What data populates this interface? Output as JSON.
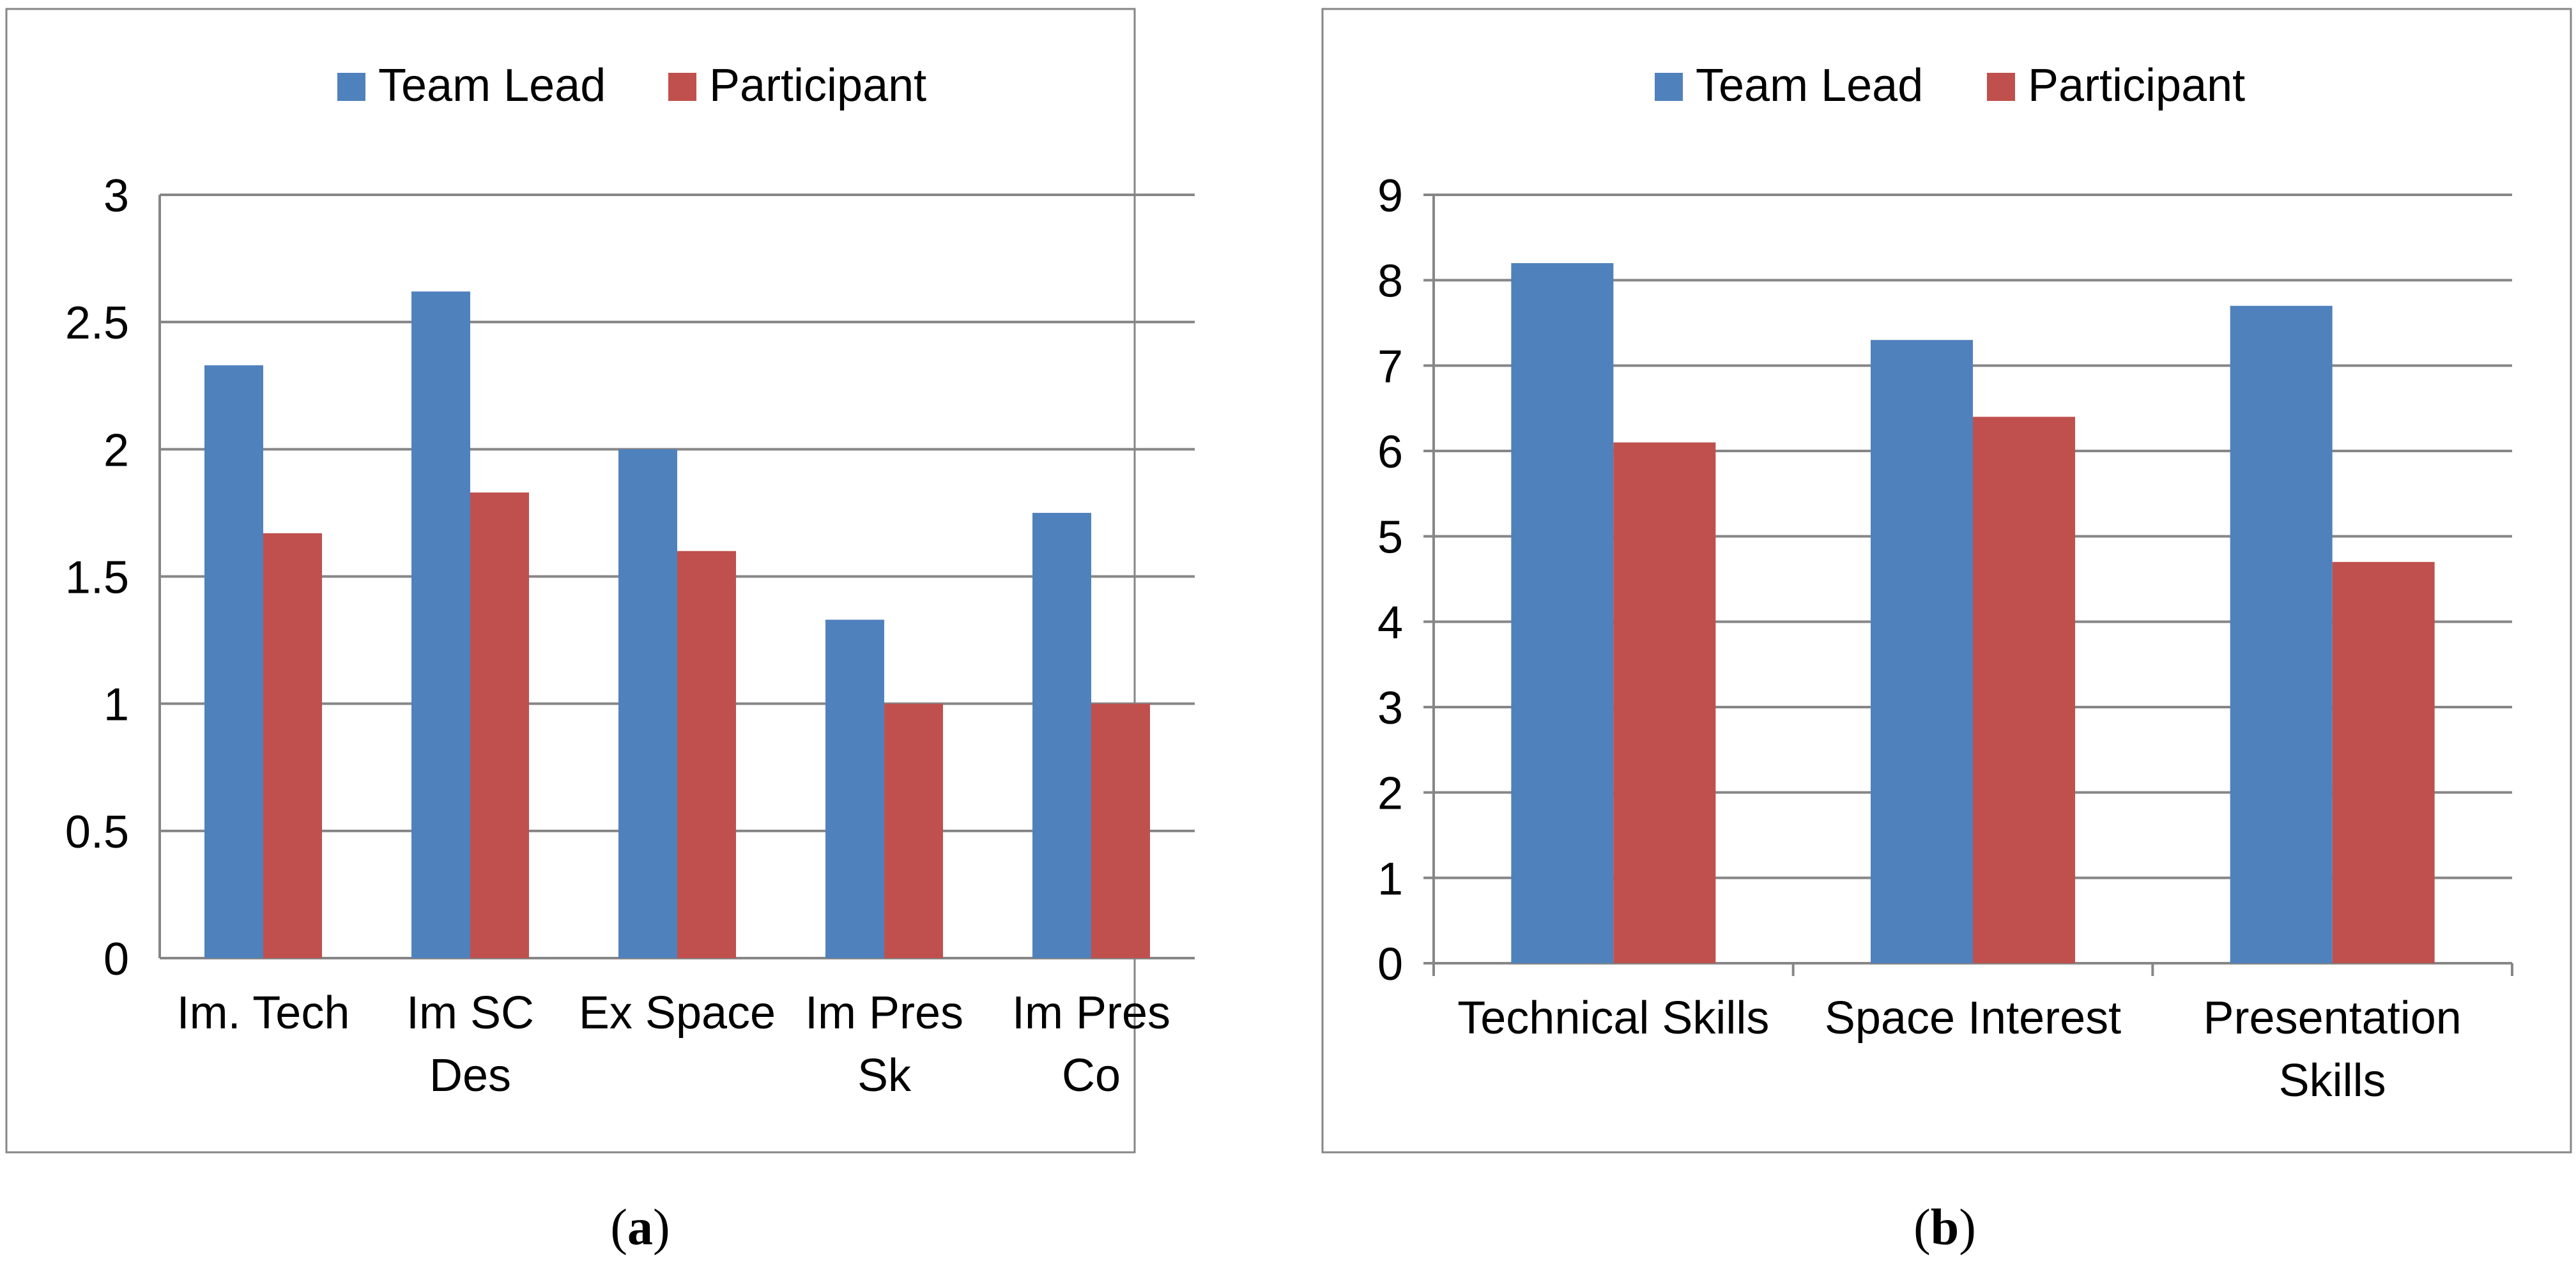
{
  "chart_data": [
    {
      "type": "bar",
      "panel_label": "a",
      "categories": [
        [
          "Im. Tech"
        ],
        [
          "Im SC",
          "Des"
        ],
        [
          "Ex Space"
        ],
        [
          "Im Pres",
          "Sk"
        ],
        [
          "Im Pres",
          "Co"
        ]
      ],
      "series": [
        {
          "name": "Team Lead",
          "values": [
            2.33,
            2.62,
            2.0,
            1.33,
            1.75
          ]
        },
        {
          "name": "Participant",
          "values": [
            1.67,
            1.83,
            1.6,
            1.0,
            1.0
          ]
        }
      ],
      "ylim": [
        0,
        3
      ],
      "yticks": [
        "0",
        "0.5",
        "1",
        "1.5",
        "2",
        "2.5",
        "3"
      ],
      "grid": true,
      "legend": "top-center",
      "title": "",
      "xlabel": "",
      "ylabel": ""
    },
    {
      "type": "bar",
      "panel_label": "b",
      "categories": [
        [
          "Technical Skills"
        ],
        [
          "Space Interest"
        ],
        [
          "Presentation",
          "Skills"
        ]
      ],
      "series": [
        {
          "name": "Team Lead",
          "values": [
            8.2,
            7.3,
            7.7
          ]
        },
        {
          "name": "Participant",
          "values": [
            6.1,
            6.4,
            4.7
          ]
        }
      ],
      "ylim": [
        0,
        9
      ],
      "yticks": [
        "0",
        "1",
        "2",
        "3",
        "4",
        "5",
        "6",
        "7",
        "8",
        "9"
      ],
      "grid": true,
      "legend": "top-center",
      "title": "",
      "xlabel": "",
      "ylabel": ""
    }
  ],
  "colors": {
    "team_lead": "#4F81BD",
    "participant": "#C0504D",
    "grid": "#868686",
    "border": "#868686",
    "text": "#000000"
  },
  "captions": {
    "a": {
      "open": "(",
      "label": "a",
      "close": ")"
    },
    "b": {
      "open": "(",
      "label": "b",
      "close": ")"
    }
  }
}
